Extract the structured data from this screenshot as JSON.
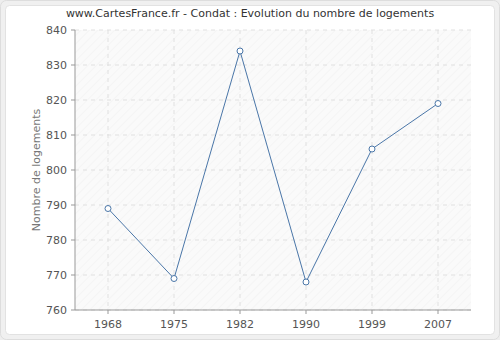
{
  "chart_data": {
    "type": "line",
    "title": "www.CartesFrance.fr - Condat : Evolution du nombre de logements",
    "y_label": "Nombre de logements",
    "categories": [
      "1968",
      "1975",
      "1982",
      "1990",
      "1999",
      "2007"
    ],
    "values": [
      789,
      769,
      834,
      768,
      806,
      819
    ],
    "color": "#4a76a8",
    "marker": "circle",
    "ylim": [
      760,
      840
    ],
    "yticks": [
      760,
      770,
      780,
      790,
      800,
      810,
      820,
      830,
      840
    ],
    "grid": true
  }
}
